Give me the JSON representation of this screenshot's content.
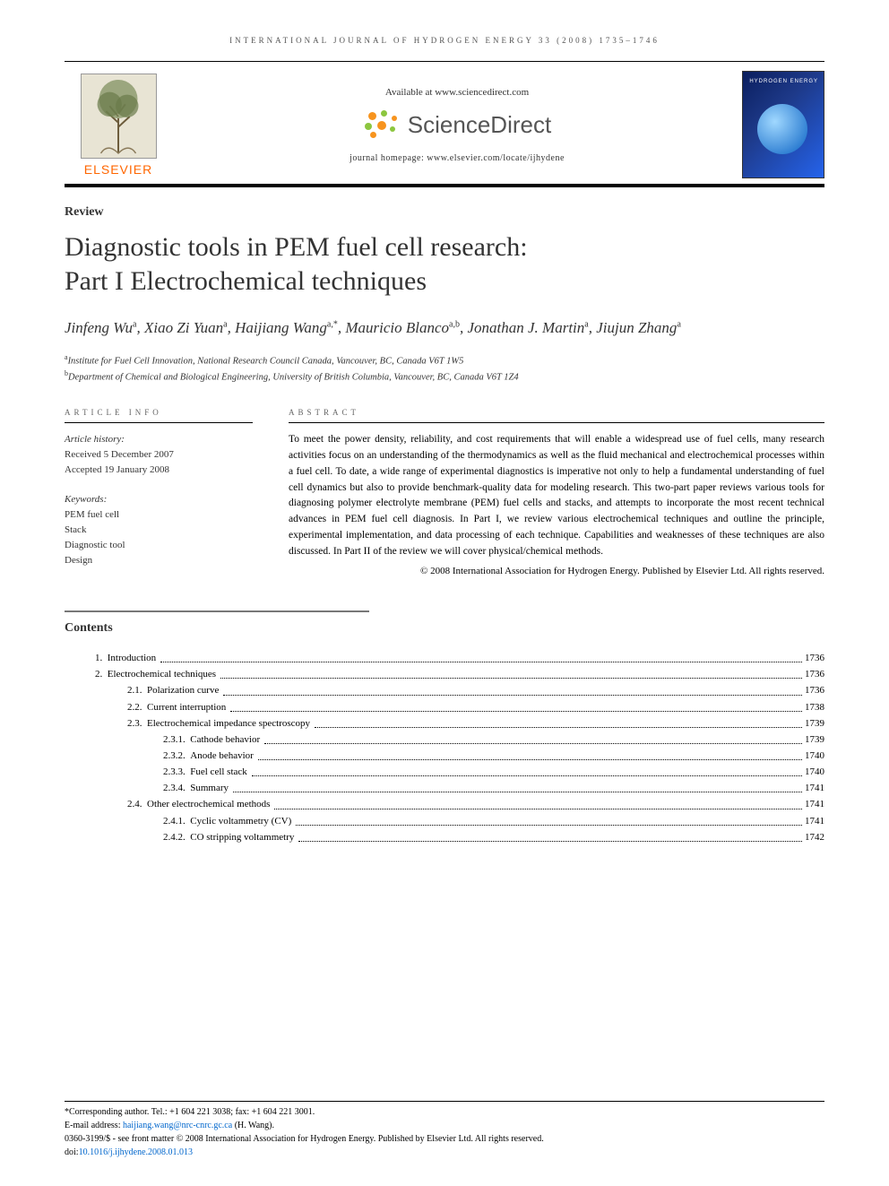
{
  "running_head": "INTERNATIONAL JOURNAL OF HYDROGEN ENERGY 33 (2008) 1735–1746",
  "header": {
    "elsevier": "ELSEVIER",
    "available": "Available at www.sciencedirect.com",
    "sd": "ScienceDirect",
    "homepage": "journal homepage: www.elsevier.com/locate/ijhydene",
    "cover_text": "HYDROGEN ENERGY"
  },
  "article_type": "Review",
  "title_l1": "Diagnostic tools in PEM fuel cell research:",
  "title_l2": "Part I Electrochemical techniques",
  "authors_html": "Jinfeng Wu<sup>a</sup>, Xiao Zi Yuan<sup>a</sup>, Haijiang Wang<sup>a,*</sup>, Mauricio Blanco<sup>a,b</sup>, Jonathan J. Martin<sup>a</sup>, Jiujun Zhang<sup>a</sup>",
  "affil_a": "Institute for Fuel Cell Innovation, National Research Council Canada, Vancouver, BC, Canada V6T 1W5",
  "affil_b": "Department of Chemical and Biological Engineering, University of British Columbia, Vancouver, BC, Canada V6T 1Z4",
  "info_head": "ARTICLE INFO",
  "abs_head": "ABSTRACT",
  "history_label": "Article history:",
  "received": "Received 5 December 2007",
  "accepted": "Accepted 19 January 2008",
  "kw_label": "Keywords:",
  "keywords": [
    "PEM fuel cell",
    "Stack",
    "Diagnostic tool",
    "Design"
  ],
  "abstract": "To meet the power density, reliability, and cost requirements that will enable a widespread use of fuel cells, many research activities focus on an understanding of the thermodynamics as well as the fluid mechanical and electrochemical processes within a fuel cell. To date, a wide range of experimental diagnostics is imperative not only to help a fundamental understanding of fuel cell dynamics but also to provide benchmark-quality data for modeling research. This two-part paper reviews various tools for diagnosing polymer electrolyte membrane (PEM) fuel cells and stacks, and attempts to incorporate the most recent technical advances in PEM fuel cell diagnosis. In Part I, we review various electrochemical techniques and outline the principle, experimental implementation, and data processing of each technique. Capabilities and weaknesses of these techniques are also discussed. In Part II of the review we will cover physical/chemical methods.",
  "copyright": "© 2008 International Association for Hydrogen Energy. Published by Elsevier Ltd. All rights reserved.",
  "contents_label": "Contents",
  "toc": [
    {
      "n": "1.",
      "t": "Introduction",
      "p": "1736",
      "i": 1
    },
    {
      "n": "2.",
      "t": "Electrochemical techniques",
      "p": "1736",
      "i": 1
    },
    {
      "n": "2.1.",
      "t": "Polarization curve",
      "p": "1736",
      "i": 2
    },
    {
      "n": "2.2.",
      "t": "Current interruption",
      "p": "1738",
      "i": 2
    },
    {
      "n": "2.3.",
      "t": "Electrochemical impedance spectroscopy",
      "p": "1739",
      "i": 2
    },
    {
      "n": "2.3.1.",
      "t": "Cathode behavior",
      "p": "1739",
      "i": 3
    },
    {
      "n": "2.3.2.",
      "t": "Anode behavior",
      "p": "1740",
      "i": 3
    },
    {
      "n": "2.3.3.",
      "t": "Fuel cell stack",
      "p": "1740",
      "i": 3
    },
    {
      "n": "2.3.4.",
      "t": "Summary",
      "p": "1741",
      "i": 3
    },
    {
      "n": "2.4.",
      "t": "Other electrochemical methods",
      "p": "1741",
      "i": 2
    },
    {
      "n": "2.4.1.",
      "t": "Cyclic voltammetry (CV)",
      "p": "1741",
      "i": 3
    },
    {
      "n": "2.4.2.",
      "t": "CO stripping voltammetry",
      "p": "1742",
      "i": 3
    }
  ],
  "footnote": {
    "corr": "*Corresponding author. Tel.: +1 604 221 3038; fax: +1 604 221 3001.",
    "email_pre": "E-mail address: ",
    "email": "haijiang.wang@nrc-cnrc.gc.ca",
    "email_post": " (H. Wang).",
    "front": "0360-3199/$ - see front matter © 2008 International Association for Hydrogen Energy. Published by Elsevier Ltd. All rights reserved.",
    "doi_pre": "doi:",
    "doi": "10.1016/j.ijhydene.2008.01.013"
  },
  "colors": {
    "accent_orange": "#ff6600",
    "link_blue": "#0066cc",
    "sd_orange": "#f7941e",
    "sd_green": "#8cc63f",
    "cover_blue": "#1e3a8a"
  }
}
